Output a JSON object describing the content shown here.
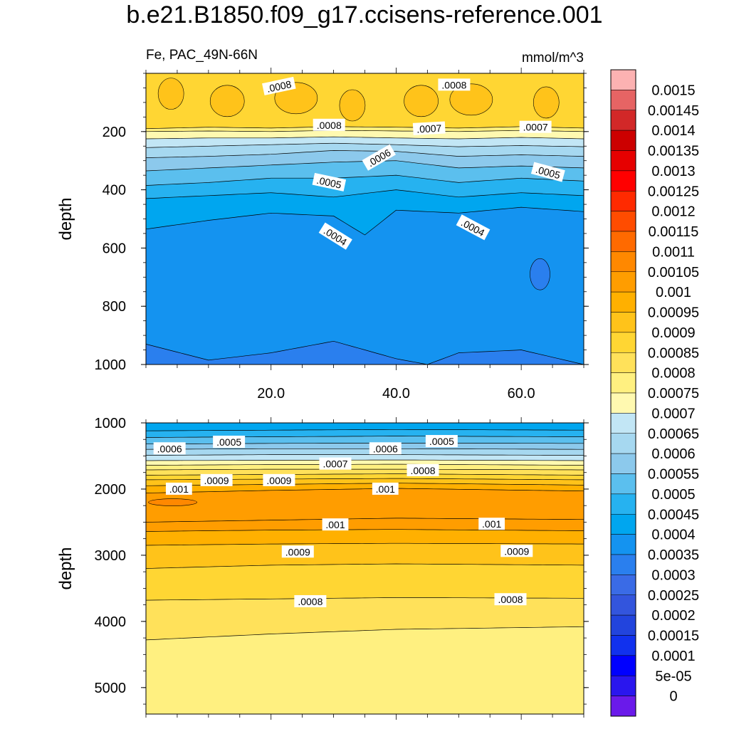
{
  "title": "b.e21.B1850.f09_g17.ccisens-reference.001",
  "chart_data": [
    {
      "type": "contour",
      "panel": "upper",
      "left_label": "Fe, PAC_49N-66N",
      "right_label": "mmol/m^3",
      "xlabel": "",
      "ylabel": "depth",
      "xlim": [
        0,
        70
      ],
      "ylim": [
        1000,
        0
      ],
      "xticks": [
        20,
        40,
        60
      ],
      "xtick_labels": [
        "20.0",
        "40.0",
        "60.0"
      ],
      "yticks": [
        200,
        400,
        600,
        800,
        1000
      ],
      "ytick_labels": [
        "200",
        "400",
        "600",
        "800",
        "1000"
      ],
      "contour_labels": [
        {
          "text": ".0008",
          "x": 19,
          "y": 45,
          "angle": -12
        },
        {
          "text": ".0008",
          "x": 47,
          "y": 40,
          "angle": 0
        },
        {
          "text": ".0008",
          "x": 27,
          "y": 178,
          "angle": 0
        },
        {
          "text": ".0007",
          "x": 43,
          "y": 190,
          "angle": -3
        },
        {
          "text": ".0007",
          "x": 60,
          "y": 185,
          "angle": 0
        },
        {
          "text": ".0006",
          "x": 35,
          "y": 290,
          "angle": -30
        },
        {
          "text": ".0005",
          "x": 27,
          "y": 375,
          "angle": 12
        },
        {
          "text": ".0005",
          "x": 62,
          "y": 340,
          "angle": 15
        },
        {
          "text": ".0004",
          "x": 28,
          "y": 560,
          "angle": 32
        },
        {
          "text": ".0004",
          "x": 50,
          "y": 530,
          "angle": 28
        }
      ],
      "iso_levels": [
        {
          "value": 0.0008,
          "depth_profile": [
            [
              0,
              190
            ],
            [
              10,
              185
            ],
            [
              20,
              188
            ],
            [
              30,
              183
            ],
            [
              40,
              185
            ],
            [
              50,
              188
            ],
            [
              60,
              183
            ],
            [
              70,
              188
            ]
          ]
        },
        {
          "value": 0.00075,
          "depth_profile": [
            [
              0,
              200
            ],
            [
              10,
              198
            ],
            [
              20,
              200
            ],
            [
              30,
              196
            ],
            [
              40,
              198
            ],
            [
              50,
              200
            ],
            [
              60,
              196
            ],
            [
              70,
              200
            ]
          ]
        },
        {
          "value": 0.0007,
          "depth_profile": [
            [
              0,
              225
            ],
            [
              10,
              222
            ],
            [
              20,
              222
            ],
            [
              30,
              218
            ],
            [
              40,
              222
            ],
            [
              50,
              225
            ],
            [
              60,
              220
            ],
            [
              70,
              225
            ]
          ]
        },
        {
          "value": 0.00065,
          "depth_profile": [
            [
              0,
              255
            ],
            [
              10,
              250
            ],
            [
              20,
              245
            ],
            [
              30,
              240
            ],
            [
              40,
              245
            ],
            [
              50,
              252
            ],
            [
              60,
              248
            ],
            [
              70,
              252
            ]
          ]
        },
        {
          "value": 0.0006,
          "depth_profile": [
            [
              0,
              290
            ],
            [
              10,
              285
            ],
            [
              20,
              278
            ],
            [
              30,
              265
            ],
            [
              40,
              268
            ],
            [
              50,
              285
            ],
            [
              60,
              280
            ],
            [
              70,
              285
            ]
          ]
        },
        {
          "value": 0.00055,
          "depth_profile": [
            [
              0,
              335
            ],
            [
              10,
              325
            ],
            [
              20,
              315
            ],
            [
              30,
              305
            ],
            [
              40,
              300
            ],
            [
              50,
              325
            ],
            [
              60,
              318
            ],
            [
              70,
              325
            ]
          ]
        },
        {
          "value": 0.0005,
          "depth_profile": [
            [
              0,
              385
            ],
            [
              10,
              375
            ],
            [
              20,
              360
            ],
            [
              30,
              360
            ],
            [
              40,
              350
            ],
            [
              50,
              375
            ],
            [
              60,
              360
            ],
            [
              70,
              370
            ]
          ]
        },
        {
          "value": 0.00045,
          "depth_profile": [
            [
              0,
              430
            ],
            [
              10,
              420
            ],
            [
              20,
              410
            ],
            [
              30,
              425
            ],
            [
              40,
              400
            ],
            [
              50,
              425
            ],
            [
              60,
              410
            ],
            [
              70,
              420
            ]
          ]
        },
        {
          "value": 0.0004,
          "depth_profile": [
            [
              0,
              535
            ],
            [
              10,
              505
            ],
            [
              20,
              480
            ],
            [
              30,
              490
            ],
            [
              35,
              555
            ],
            [
              40,
              470
            ],
            [
              50,
              480
            ],
            [
              60,
              460
            ],
            [
              70,
              475
            ]
          ]
        },
        {
          "value": 0.00035,
          "depth_profile": [
            [
              0,
              930
            ],
            [
              10,
              985
            ],
            [
              20,
              960
            ],
            [
              30,
              920
            ],
            [
              40,
              980
            ],
            [
              45,
              1000
            ],
            [
              50,
              960
            ],
            [
              60,
              950
            ],
            [
              70,
              1000
            ]
          ]
        }
      ],
      "lowest_region": {
        "value": 0.00035,
        "x": 63,
        "depth": 690
      }
    },
    {
      "type": "contour",
      "panel": "lower",
      "xlabel": "",
      "ylabel": "depth",
      "xlim": [
        0,
        70
      ],
      "ylim": [
        5400,
        1000
      ],
      "yticks": [
        1000,
        2000,
        3000,
        4000,
        5000
      ],
      "ytick_labels": [
        "1000",
        "2000",
        "3000",
        "4000",
        "5000"
      ],
      "contour_labels": [
        {
          "text": ".0005",
          "x": 11,
          "y": 1290,
          "angle": 0
        },
        {
          "text": ".0005",
          "x": 45,
          "y": 1280,
          "angle": 0
        },
        {
          "text": ".0006",
          "x": 1.5,
          "y": 1390,
          "angle": 0
        },
        {
          "text": ".0006",
          "x": 36,
          "y": 1390,
          "angle": 0
        },
        {
          "text": ".0007",
          "x": 28,
          "y": 1620,
          "angle": 0
        },
        {
          "text": ".0008",
          "x": 42,
          "y": 1720,
          "angle": 0
        },
        {
          "text": ".0009",
          "x": 9,
          "y": 1870,
          "angle": 0
        },
        {
          "text": ".0009",
          "x": 19,
          "y": 1870,
          "angle": 0
        },
        {
          "text": ".001",
          "x": 3,
          "y": 2000,
          "angle": 0
        },
        {
          "text": ".001",
          "x": 36,
          "y": 2000,
          "angle": 0
        },
        {
          "text": ".001",
          "x": 28,
          "y": 2540,
          "angle": 0
        },
        {
          "text": ".001",
          "x": 53,
          "y": 2530,
          "angle": 0
        },
        {
          "text": ".0009",
          "x": 22,
          "y": 2950,
          "angle": 0
        },
        {
          "text": ".0009",
          "x": 57,
          "y": 2940,
          "angle": 0
        },
        {
          "text": ".0008",
          "x": 24,
          "y": 3700,
          "angle": 0
        },
        {
          "text": ".0008",
          "x": 56,
          "y": 3670,
          "angle": 0
        }
      ],
      "iso_levels": [
        {
          "value": 0.00045,
          "depth_profile": [
            [
              0,
              1120
            ],
            [
              20,
              1110
            ],
            [
              40,
              1100
            ],
            [
              70,
              1110
            ]
          ]
        },
        {
          "value": 0.0005,
          "depth_profile": [
            [
              0,
              1220
            ],
            [
              20,
              1210
            ],
            [
              40,
              1200
            ],
            [
              70,
              1210
            ]
          ]
        },
        {
          "value": 0.00055,
          "depth_profile": [
            [
              0,
              1320
            ],
            [
              20,
              1310
            ],
            [
              40,
              1305
            ],
            [
              70,
              1310
            ]
          ]
        },
        {
          "value": 0.0006,
          "depth_profile": [
            [
              0,
              1400
            ],
            [
              20,
              1390
            ],
            [
              40,
              1390
            ],
            [
              70,
              1400
            ]
          ]
        },
        {
          "value": 0.00065,
          "depth_profile": [
            [
              0,
              1490
            ],
            [
              20,
              1480
            ],
            [
              40,
              1480
            ],
            [
              70,
              1490
            ]
          ]
        },
        {
          "value": 0.0007,
          "depth_profile": [
            [
              0,
              1570
            ],
            [
              20,
              1565
            ],
            [
              40,
              1560
            ],
            [
              70,
              1570
            ]
          ]
        },
        {
          "value": 0.00075,
          "depth_profile": [
            [
              0,
              1640
            ],
            [
              20,
              1630
            ],
            [
              40,
              1625
            ],
            [
              70,
              1640
            ]
          ]
        },
        {
          "value": 0.0008,
          "depth_profile": [
            [
              0,
              1710
            ],
            [
              20,
              1700
            ],
            [
              40,
              1700
            ],
            [
              70,
              1710
            ]
          ]
        },
        {
          "value": 0.00085,
          "depth_profile": [
            [
              0,
              1790
            ],
            [
              20,
              1780
            ],
            [
              40,
              1770
            ],
            [
              70,
              1790
            ]
          ]
        },
        {
          "value": 0.0009,
          "depth_profile": [
            [
              0,
              1860
            ],
            [
              20,
              1850
            ],
            [
              40,
              1840
            ],
            [
              70,
              1860
            ]
          ]
        },
        {
          "value": 0.00095,
          "depth_profile": [
            [
              0,
              1950
            ],
            [
              20,
              1930
            ],
            [
              40,
              1910
            ],
            [
              70,
              1940
            ]
          ]
        },
        {
          "value": 0.001,
          "depth_profile": [
            [
              0,
              2060
            ],
            [
              20,
              2020
            ],
            [
              40,
              1990
            ],
            [
              70,
              2030
            ]
          ]
        },
        {
          "value": 0.00105,
          "depth_profile": [
            [
              0,
              2500
            ],
            [
              20,
              2470
            ],
            [
              40,
              2440
            ],
            [
              70,
              2460
            ]
          ]
        },
        {
          "value": 0.001,
          "depth_profile": [
            [
              0,
              2640
            ],
            [
              20,
              2620
            ],
            [
              40,
              2610
            ],
            [
              70,
              2630
            ]
          ]
        },
        {
          "value": 0.00095,
          "depth_profile": [
            [
              0,
              2850
            ],
            [
              20,
              2830
            ],
            [
              40,
              2820
            ],
            [
              70,
              2830
            ]
          ]
        },
        {
          "value": 0.0009,
          "depth_profile": [
            [
              0,
              3200
            ],
            [
              20,
              3150
            ],
            [
              40,
              3130
            ],
            [
              70,
              3150
            ]
          ]
        },
        {
          "value": 0.00085,
          "depth_profile": [
            [
              0,
              3680
            ],
            [
              20,
              3660
            ],
            [
              40,
              3640
            ],
            [
              70,
              3650
            ]
          ]
        },
        {
          "value": 0.0008,
          "depth_profile": [
            [
              0,
              4280
            ],
            [
              20,
              4190
            ],
            [
              40,
              4120
            ],
            [
              70,
              4080
            ]
          ]
        },
        {
          "value": 0.00075,
          "depth_profile": [
            [
              0,
              5400
            ],
            [
              70,
              5400
            ]
          ]
        }
      ],
      "highest_region": {
        "value": 0.0011,
        "x": 2,
        "depth": 2200
      }
    }
  ],
  "colorbar": {
    "labels": [
      "0.0015",
      "0.00145",
      "0.0014",
      "0.00135",
      "0.0013",
      "0.00125",
      "0.0012",
      "0.00115",
      "0.0011",
      "0.00105",
      "0.001",
      "0.00095",
      "0.0009",
      "0.00085",
      "0.0008",
      "0.00075",
      "0.0007",
      "0.00065",
      "0.0006",
      "0.00055",
      "0.0005",
      "0.00045",
      "0.0004",
      "0.00035",
      "0.0003",
      "0.00025",
      "0.0002",
      "0.00015",
      "0.0001",
      "5e-05",
      "0"
    ],
    "colors": [
      "#fcb2b2",
      "#e66464",
      "#d22828",
      "#cc0000",
      "#e60000",
      "#ff0000",
      "#ff2a00",
      "#ff4c00",
      "#ff6a00",
      "#ff8800",
      "#ff9d00",
      "#ffb000",
      "#ffc31a",
      "#ffd633",
      "#ffe15a",
      "#fff080",
      "#fff9b0",
      "#c2e6f5",
      "#a6d8f0",
      "#8cc9ec",
      "#5bbfee",
      "#26b2f0",
      "#00a6ef",
      "#1493f0",
      "#2a7fee",
      "#3a6be6",
      "#3355dd",
      "#2244dd",
      "#1131ee",
      "#0000ff",
      "#2a16ee",
      "#6a1aea"
    ]
  }
}
